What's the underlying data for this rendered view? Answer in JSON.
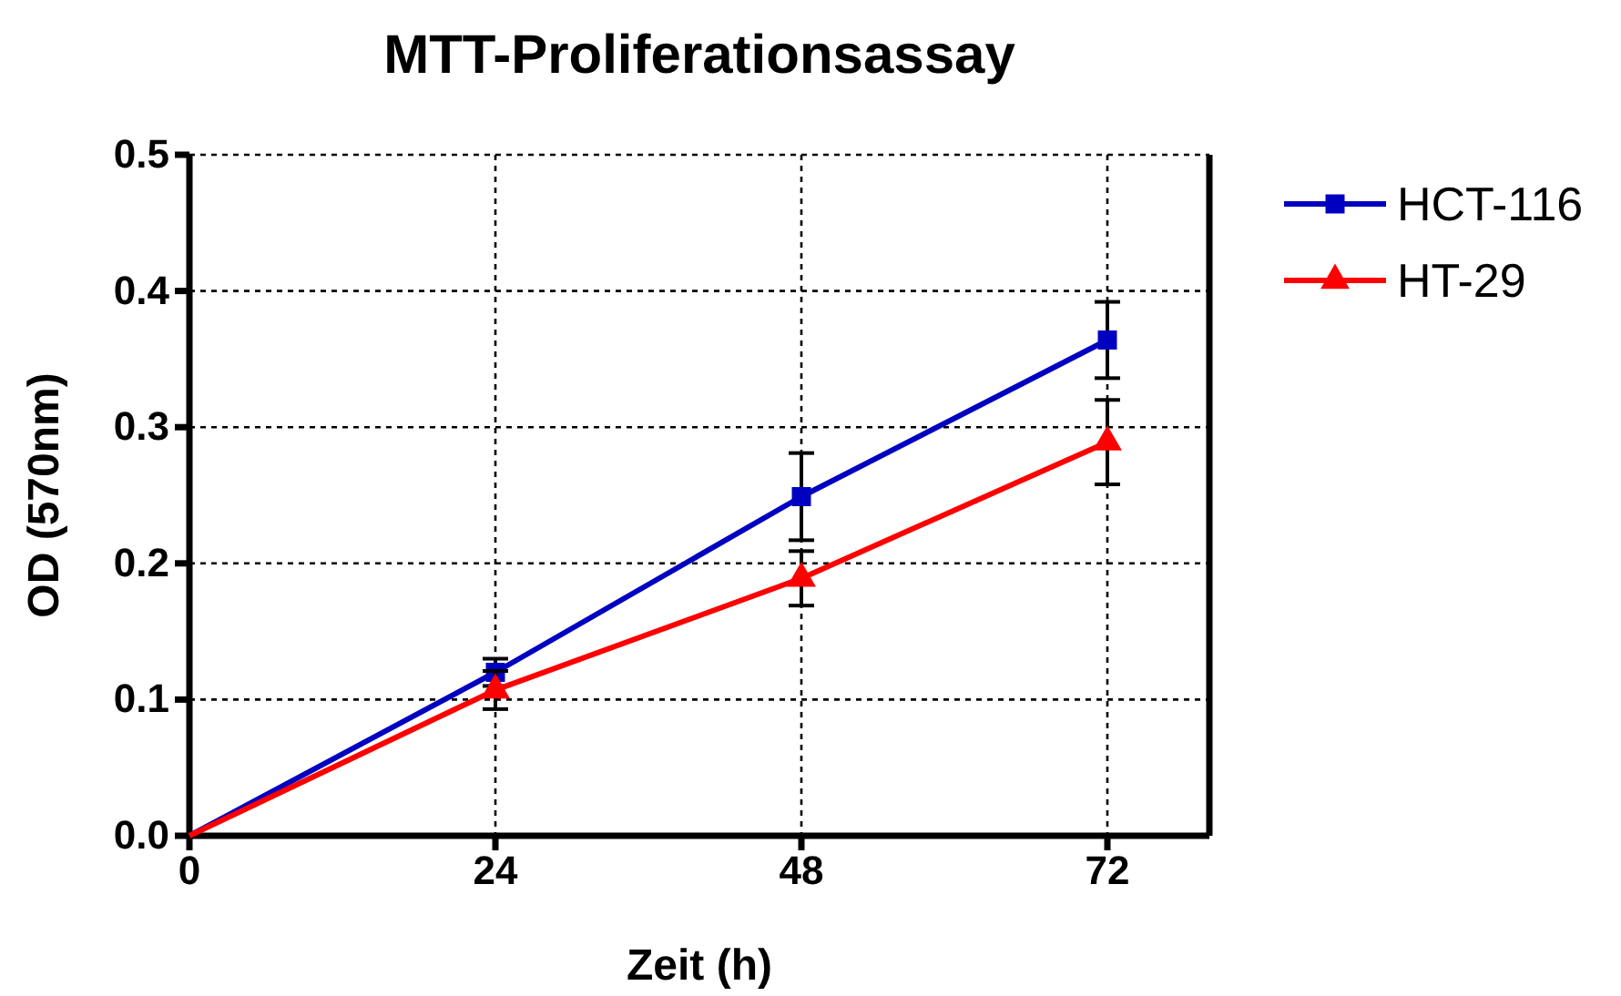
{
  "chart_data": {
    "type": "line",
    "title": "MTT-Proliferationsassay",
    "xlabel": "Zeit (h)",
    "ylabel": "OD (570nm)",
    "x": [
      0,
      24,
      48,
      72
    ],
    "series": [
      {
        "name": "HCT-116",
        "color": "#0000c0",
        "marker": "square",
        "values": [
          0,
          0.12,
          0.249,
          0.364
        ],
        "errors": [
          null,
          0.01,
          0.032,
          0.028
        ]
      },
      {
        "name": "HT-29",
        "color": "#ff0000",
        "marker": "triangle",
        "values": [
          0,
          0.107,
          0.189,
          0.289
        ],
        "errors": [
          null,
          0.014,
          0.02,
          0.031
        ]
      }
    ],
    "xlim": [
      0,
      80
    ],
    "xticks": [
      0,
      24,
      48,
      72
    ],
    "ylim": [
      0,
      0.5
    ],
    "yticks": [
      {
        "value": 0,
        "label": "0.0"
      },
      0.1,
      0.2,
      0.3,
      0.4,
      0.5
    ],
    "grid": true,
    "legend": "right",
    "line_style": "solid"
  }
}
